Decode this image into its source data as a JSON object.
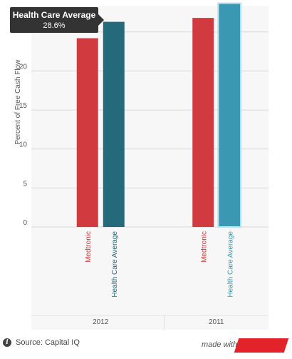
{
  "chart_data": {
    "type": "bar",
    "ylabel": "Percent of Free Cash Flow",
    "ylim": [
      0,
      28
    ],
    "yticks": [
      "0",
      "5",
      "10",
      "15",
      "20",
      "25"
    ],
    "grid": true,
    "groups": [
      "2012",
      "2011"
    ],
    "bars": [
      {
        "group": "2012",
        "label": "Medtronic",
        "value": 24.2,
        "color": "#d13b3f",
        "label_color": "#d13b3f"
      },
      {
        "group": "2012",
        "label": "Health Care Average",
        "value": 26.3,
        "color": "#256a7a",
        "label_color": "#256a7a"
      },
      {
        "group": "2011",
        "label": "Medtronic",
        "value": 26.8,
        "color": "#d13b3f",
        "label_color": "#d13b3f"
      },
      {
        "group": "2011",
        "label": "Health Care Average",
        "value": 28.6,
        "color": "#3a98b2",
        "label_color": "#3a98b2"
      }
    ]
  },
  "tooltip": {
    "title": "Health Care Average",
    "value": "28.6%"
  },
  "footer": {
    "source": "Source: Capital IQ",
    "made_with": "made with"
  },
  "icons": {
    "info": "info-icon"
  }
}
